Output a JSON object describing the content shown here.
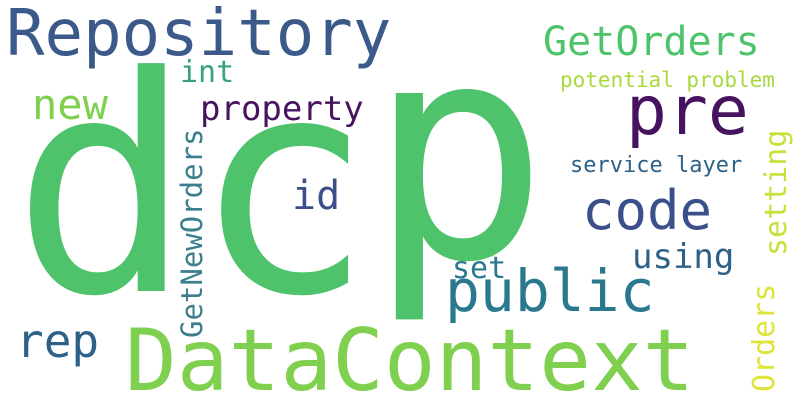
{
  "words": [
    {
      "id": "w-dc",
      "text": "dc",
      "color": "#4ec36b"
    },
    {
      "id": "w-p",
      "text": "p",
      "color": "#4ec36b"
    },
    {
      "id": "w-repository",
      "text": "Repository",
      "color": "#3b5a8a"
    },
    {
      "id": "w-datacontext",
      "text": "DataContext",
      "color": "#7fd04f"
    },
    {
      "id": "w-pre",
      "text": "pre",
      "color": "#46145f"
    },
    {
      "id": "w-code",
      "text": "code",
      "color": "#3b4f8b"
    },
    {
      "id": "w-public",
      "text": "public",
      "color": "#2a788e"
    },
    {
      "id": "w-getorders",
      "text": "GetOrders",
      "color": "#4ec36b"
    },
    {
      "id": "w-new",
      "text": "new",
      "color": "#7fd04f"
    },
    {
      "id": "w-property",
      "text": "property",
      "color": "#46145f"
    },
    {
      "id": "w-int",
      "text": "int",
      "color": "#3ba17a"
    },
    {
      "id": "w-id",
      "text": "id",
      "color": "#3b4f8b"
    },
    {
      "id": "w-rep",
      "text": "rep",
      "color": "#2d6188"
    },
    {
      "id": "w-set",
      "text": "set",
      "color": "#2a788e"
    },
    {
      "id": "w-using",
      "text": "using",
      "color": "#2d6188"
    },
    {
      "id": "w-service",
      "text": "service layer",
      "color": "#2d6188"
    },
    {
      "id": "w-potential",
      "text": "potential problem",
      "color": "#a8d93e"
    },
    {
      "id": "w-getneworders",
      "text": "GetNewOrders",
      "color": "#3b7f8d"
    },
    {
      "id": "w-setting",
      "text": "setting",
      "color": "#c9e03a"
    },
    {
      "id": "w-orders",
      "text": "Orders",
      "color": "#dde43a"
    }
  ]
}
